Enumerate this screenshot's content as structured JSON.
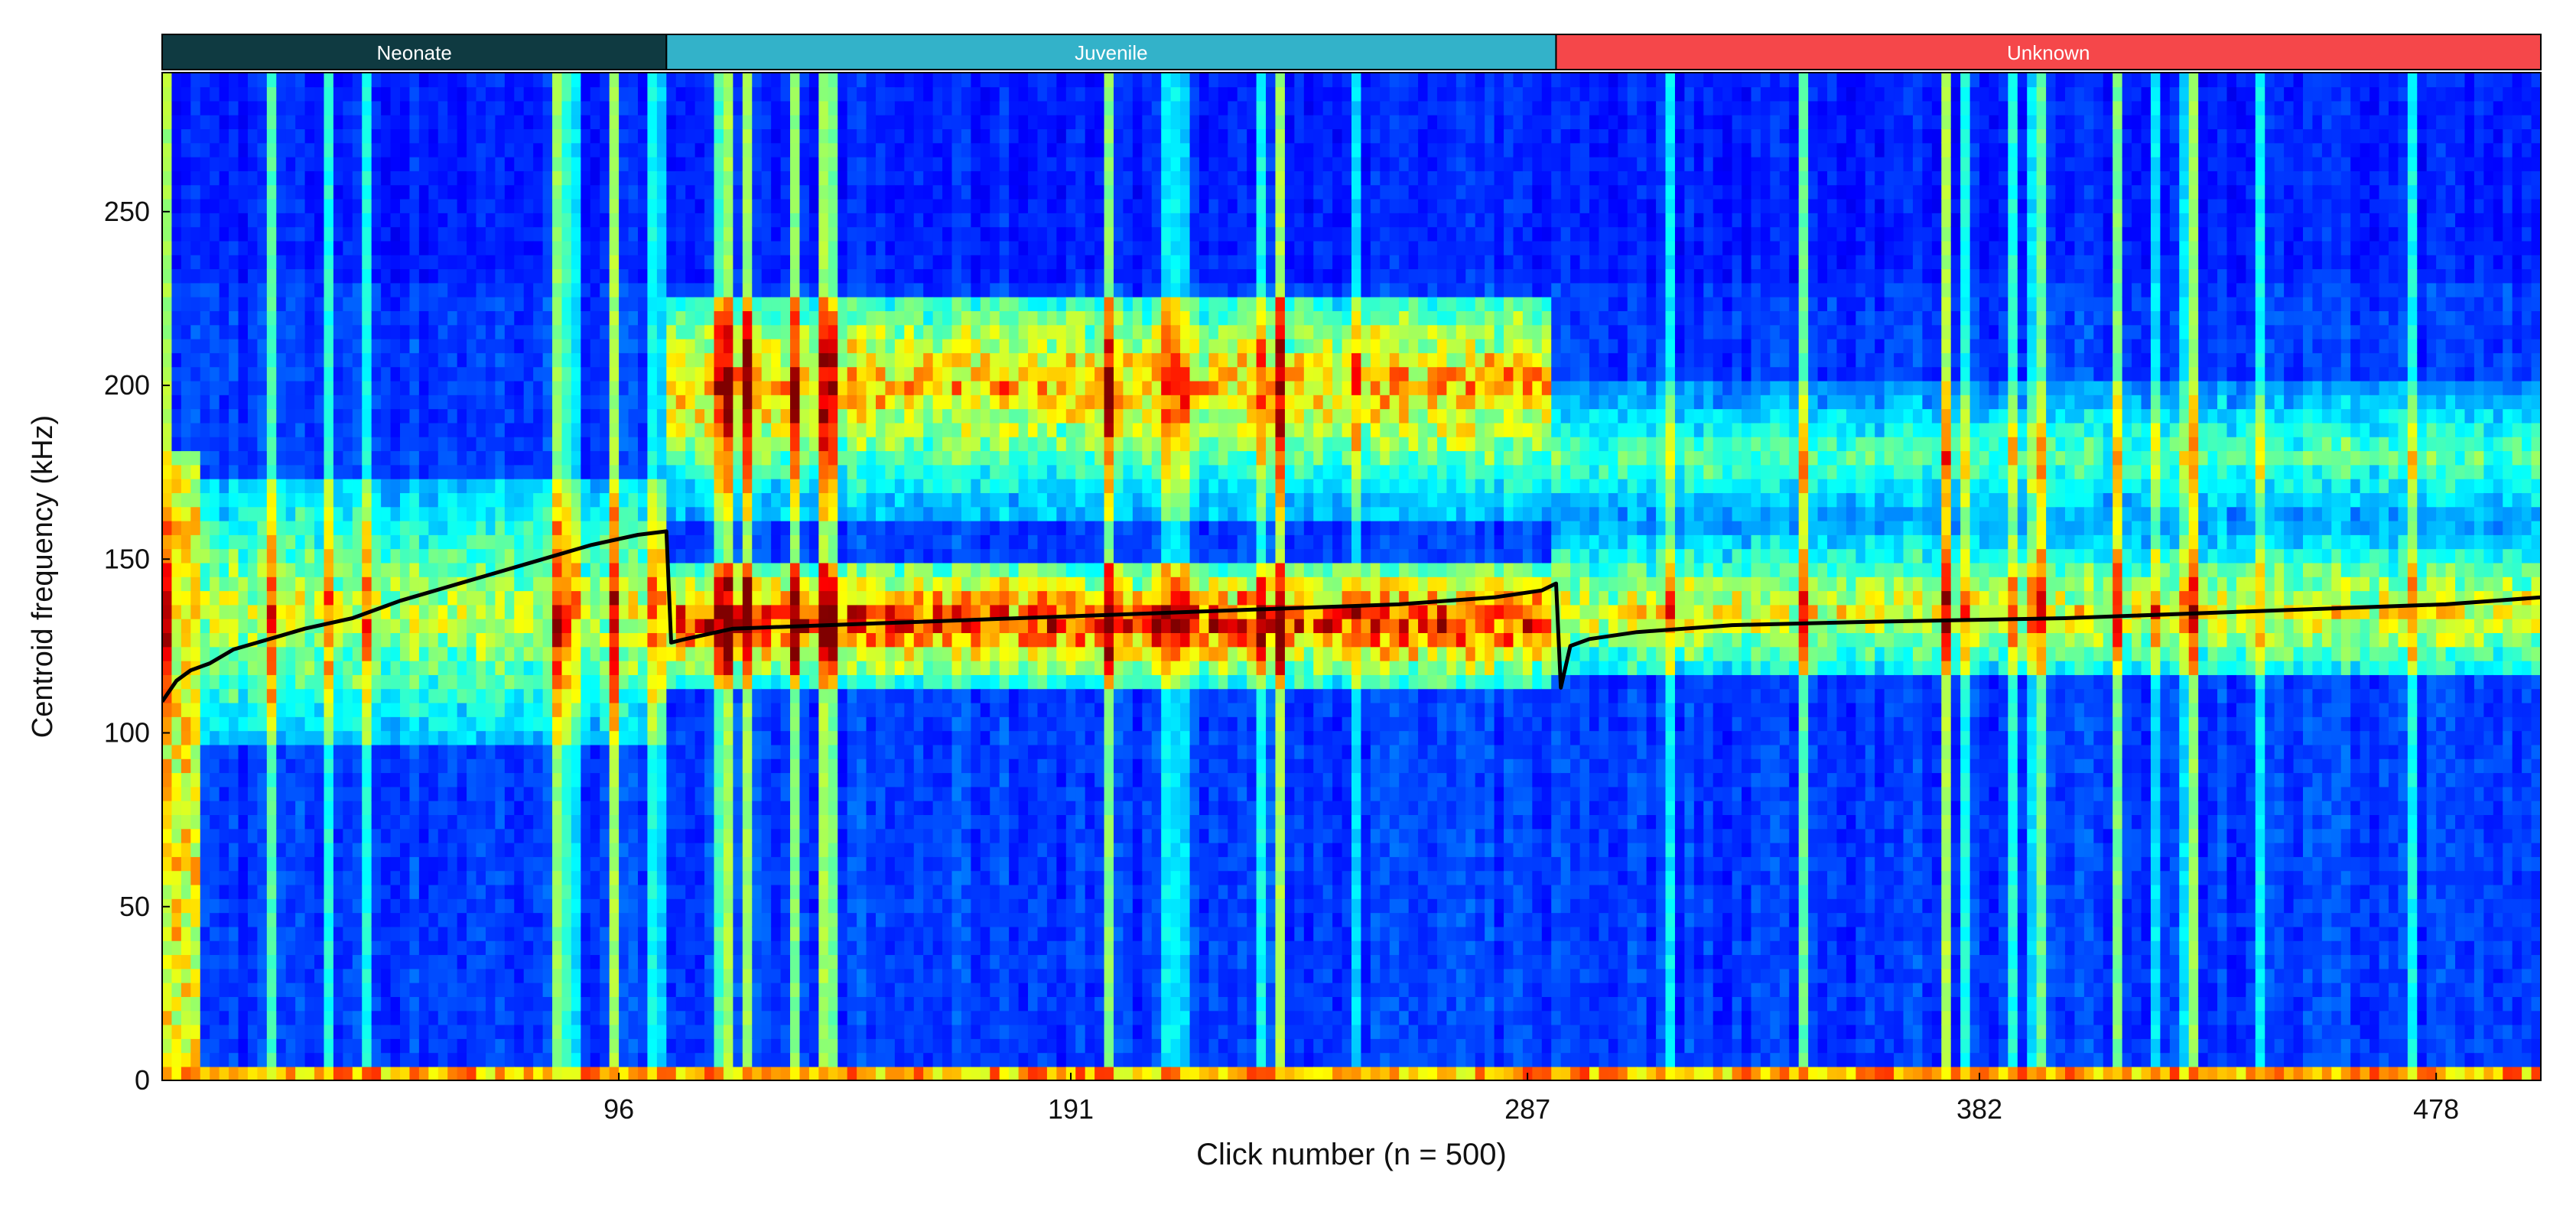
{
  "chart_data": {
    "type": "heatmap",
    "title": "",
    "xlabel": "Click number (n = 500)",
    "ylabel": "Centroid frequency (kHz)",
    "xlim": [
      0,
      500
    ],
    "ylim": [
      0,
      290
    ],
    "xticks": [
      96,
      191,
      287,
      382,
      478
    ],
    "yticks": [
      0,
      50,
      100,
      150,
      200,
      250
    ],
    "colormap": "jet",
    "groups": [
      {
        "name": "Neonate",
        "start": 0,
        "end": 106,
        "color": "#0f3a41"
      },
      {
        "name": "Juvenile",
        "start": 106,
        "end": 293,
        "color": "#33b2c9"
      },
      {
        "name": "Unknown",
        "start": 293,
        "end": 500,
        "color": "#f5474a"
      }
    ],
    "spectral_bands": [
      {
        "group": "Neonate",
        "freq_low": 95,
        "freq_high": 175,
        "peak": 135,
        "intensity": 0.5
      },
      {
        "group": "Juvenile",
        "freq_low": 112,
        "freq_high": 150,
        "peak": 132,
        "intensity": 0.85
      },
      {
        "group": "Juvenile",
        "freq_low": 160,
        "freq_high": 225,
        "peak": 200,
        "intensity": 0.65
      },
      {
        "group": "Unknown",
        "freq_low": 115,
        "freq_high": 160,
        "peak": 135,
        "intensity": 0.55
      },
      {
        "group": "Unknown",
        "freq_low": 160,
        "freq_high": 200,
        "peak": 180,
        "intensity": 0.35
      }
    ],
    "series": [
      {
        "type": "line",
        "color": "#000000",
        "x": [
          0,
          3,
          6,
          10,
          15,
          20,
          25,
          30,
          40,
          50,
          60,
          70,
          80,
          90,
          100,
          106,
          107,
          110,
          120,
          140,
          160,
          180,
          200,
          220,
          240,
          260,
          280,
          290,
          293,
          294,
          296,
          300,
          310,
          330,
          360,
          400,
          440,
          480,
          500
        ],
        "y": [
          109,
          115,
          118,
          120,
          124,
          126,
          128,
          130,
          133,
          138,
          142,
          146,
          150,
          154,
          157,
          158,
          126,
          127,
          130,
          131,
          132,
          133,
          134,
          135,
          136,
          137,
          139,
          141,
          143,
          113,
          125,
          127,
          129,
          131,
          132,
          133,
          135,
          137,
          139
        ]
      }
    ]
  }
}
